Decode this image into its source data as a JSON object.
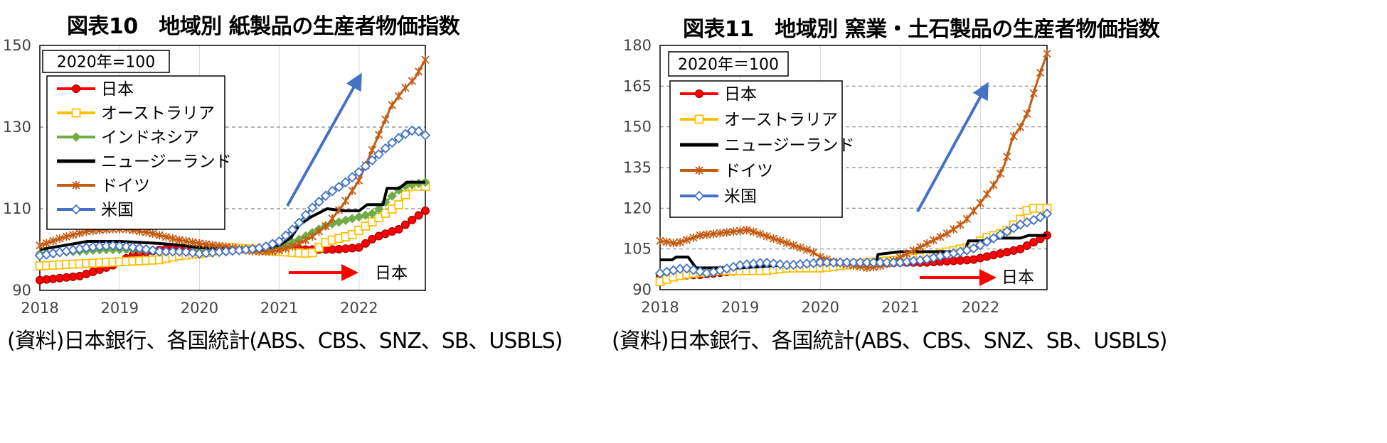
{
  "panels": [
    {
      "title": "図表10　地域別 紙製品の生産者物価指数",
      "source": "(資料)日本銀行、各国統計(ABS、CBS、SNZ、SB、USBLS)",
      "note": "2020年=100",
      "annotation": "日本"
    },
    {
      "title": "図表11　地域別 窯業・土石製品の生産者物価指数",
      "source": "(資料)日本銀行、各国統計(ABS、CBS、SNZ、SB、USBLS)",
      "note": "2020年＝100",
      "annotation": "日本"
    }
  ],
  "colors": {
    "japan": "#ff0000",
    "australia": "#ffc000",
    "indonesia": "#70ad47",
    "nz": "#000000",
    "germany": "#c55a11",
    "usa": "#4472c4",
    "arrow_blue": "#4472c4",
    "arrow_red": "#ff0000"
  },
  "chart_data": [
    {
      "type": "line",
      "ylim": [
        90,
        150
      ],
      "yticks": [
        90,
        110,
        130,
        150
      ],
      "xlim": [
        2018,
        2022.83
      ],
      "xticks": [
        "2018",
        "2019",
        "2020",
        "2021",
        "2022"
      ],
      "grid": "horizontal dashed",
      "legend": "top-left",
      "series": [
        {
          "name": "日本",
          "key": "japan",
          "marker": "circle",
          "points": [
            [
              2018,
              92.5
            ],
            [
              2018.5,
              93.5
            ],
            [
              2018.9,
              96
            ],
            [
              2019.2,
              99
            ],
            [
              2019.6,
              100.2
            ],
            [
              2020,
              100
            ],
            [
              2020.5,
              100
            ],
            [
              2021,
              100
            ],
            [
              2021.4,
              100
            ],
            [
              2021.7,
              100
            ],
            [
              2022,
              100.5
            ],
            [
              2022.2,
              103
            ],
            [
              2022.5,
              105
            ],
            [
              2022.83,
              109.5
            ]
          ]
        },
        {
          "name": "オーストラリア",
          "key": "australia",
          "marker": "square",
          "points": [
            [
              2018,
              96
            ],
            [
              2018.5,
              96.5
            ],
            [
              2019,
              97
            ],
            [
              2019.5,
              97.5
            ],
            [
              2019.75,
              98.5
            ],
            [
              2020,
              99
            ],
            [
              2020.4,
              100.5
            ],
            [
              2020.7,
              100
            ],
            [
              2021,
              99.5
            ],
            [
              2021.4,
              99
            ],
            [
              2021.6,
              102
            ],
            [
              2021.9,
              103.5
            ],
            [
              2022.1,
              106
            ],
            [
              2022.3,
              108.5
            ],
            [
              2022.5,
              111
            ],
            [
              2022.65,
              115.5
            ],
            [
              2022.83,
              115.5
            ]
          ]
        },
        {
          "name": "インドネシア",
          "key": "indonesia",
          "marker": "diamond",
          "points": [
            [
              2018,
              99
            ],
            [
              2018.4,
              99.5
            ],
            [
              2018.8,
              100
            ],
            [
              2019.2,
              100
            ],
            [
              2019.6,
              99.5
            ],
            [
              2020,
              99.5
            ],
            [
              2020.4,
              100
            ],
            [
              2020.8,
              100
            ],
            [
              2021,
              100.5
            ],
            [
              2021.2,
              102
            ],
            [
              2021.4,
              104
            ],
            [
              2021.6,
              106
            ],
            [
              2021.8,
              107
            ],
            [
              2022,
              108
            ],
            [
              2022.2,
              109
            ],
            [
              2022.35,
              112
            ],
            [
              2022.55,
              115.5
            ],
            [
              2022.83,
              116.5
            ]
          ]
        },
        {
          "name": "ニュージーランド",
          "key": "nz",
          "marker": "none",
          "points": [
            [
              2018,
              100
            ],
            [
              2018.3,
              101
            ],
            [
              2018.6,
              102
            ],
            [
              2019,
              102
            ],
            [
              2019.5,
              101.5
            ],
            [
              2019.8,
              101
            ],
            [
              2020,
              100.5
            ],
            [
              2020.5,
              100
            ],
            [
              2020.8,
              100
            ],
            [
              2021,
              101
            ],
            [
              2021.15,
              103
            ],
            [
              2021.25,
              106
            ],
            [
              2021.4,
              108
            ],
            [
              2021.6,
              110
            ],
            [
              2021.8,
              109.5
            ],
            [
              2022,
              109.5
            ],
            [
              2022.1,
              111
            ],
            [
              2022.3,
              111
            ],
            [
              2022.35,
              115
            ],
            [
              2022.5,
              115
            ],
            [
              2022.6,
              116.5
            ],
            [
              2022.83,
              116.5
            ]
          ]
        },
        {
          "name": "ドイツ",
          "key": "germany",
          "marker": "star",
          "points": [
            [
              2018,
              101
            ],
            [
              2018.3,
              103
            ],
            [
              2018.6,
              104.5
            ],
            [
              2018.9,
              105
            ],
            [
              2019.1,
              105
            ],
            [
              2019.4,
              104
            ],
            [
              2019.7,
              102.5
            ],
            [
              2020,
              101.5
            ],
            [
              2020.4,
              100.5
            ],
            [
              2020.7,
              99.5
            ],
            [
              2020.9,
              99.5
            ],
            [
              2021,
              99.8
            ],
            [
              2021.2,
              101
            ],
            [
              2021.4,
              103
            ],
            [
              2021.6,
              106
            ],
            [
              2021.8,
              111
            ],
            [
              2022,
              117
            ],
            [
              2022.2,
              126
            ],
            [
              2022.4,
              135
            ],
            [
              2022.55,
              139
            ],
            [
              2022.7,
              142
            ],
            [
              2022.83,
              146.5
            ]
          ]
        },
        {
          "name": "米国",
          "key": "usa",
          "marker": "diamondhollow",
          "points": [
            [
              2018,
              98.5
            ],
            [
              2018.3,
              99.5
            ],
            [
              2018.6,
              100.5
            ],
            [
              2018.9,
              101
            ],
            [
              2019.2,
              100.5
            ],
            [
              2019.5,
              99.5
            ],
            [
              2019.8,
              99.5
            ],
            [
              2020,
              99
            ],
            [
              2020.3,
              99.5
            ],
            [
              2020.6,
              100
            ],
            [
              2020.8,
              100.5
            ],
            [
              2021,
              102
            ],
            [
              2021.2,
              105.5
            ],
            [
              2021.4,
              110
            ],
            [
              2021.6,
              113.5
            ],
            [
              2021.8,
              116
            ],
            [
              2022,
              119
            ],
            [
              2022.2,
              122.5
            ],
            [
              2022.4,
              126
            ],
            [
              2022.55,
              128
            ],
            [
              2022.7,
              129.5
            ],
            [
              2022.83,
              128
            ]
          ]
        }
      ]
    },
    {
      "type": "line",
      "ylim": [
        90,
        180
      ],
      "yticks": [
        90,
        105,
        120,
        135,
        150,
        165,
        180
      ],
      "xlim": [
        2018,
        2022.83
      ],
      "xticks": [
        "2018",
        "2019",
        "2020",
        "2021",
        "2022"
      ],
      "grid": "horizontal dashed",
      "legend": "top-left",
      "series": [
        {
          "name": "日本",
          "key": "japan",
          "marker": "circle",
          "points": [
            [
              2018,
              95
            ],
            [
              2018.5,
              95.5
            ],
            [
              2019,
              97
            ],
            [
              2019.5,
              98
            ],
            [
              2020,
              99
            ],
            [
              2020.5,
              99.5
            ],
            [
              2021,
              100
            ],
            [
              2021.3,
              100
            ],
            [
              2021.6,
              100.5
            ],
            [
              2021.9,
              101
            ],
            [
              2022.2,
              103
            ],
            [
              2022.5,
              105
            ],
            [
              2022.83,
              110
            ]
          ]
        },
        {
          "name": "オーストラリア",
          "key": "australia",
          "marker": "square",
          "points": [
            [
              2018,
              93
            ],
            [
              2018.2,
              95
            ],
            [
              2018.4,
              96
            ],
            [
              2018.7,
              97
            ],
            [
              2019,
              97
            ],
            [
              2019.3,
              97
            ],
            [
              2019.6,
              98
            ],
            [
              2020,
              98
            ],
            [
              2020.3,
              99
            ],
            [
              2020.6,
              100
            ],
            [
              2021,
              101
            ],
            [
              2021.3,
              102
            ],
            [
              2021.6,
              104
            ],
            [
              2021.9,
              106
            ],
            [
              2022.05,
              109
            ],
            [
              2022.3,
              111
            ],
            [
              2022.5,
              116
            ],
            [
              2022.6,
              120
            ],
            [
              2022.83,
              120
            ]
          ]
        },
        {
          "name": "ニュージーランド",
          "key": "nz",
          "marker": "none",
          "points": [
            [
              2018,
              101
            ],
            [
              2018.15,
              101
            ],
            [
              2018.2,
              102
            ],
            [
              2018.35,
              102
            ],
            [
              2018.45,
              98
            ],
            [
              2018.6,
              98
            ],
            [
              2019,
              98
            ],
            [
              2019.5,
              99
            ],
            [
              2020,
              99.5
            ],
            [
              2020.5,
              100
            ],
            [
              2020.7,
              100
            ],
            [
              2020.72,
              103
            ],
            [
              2021,
              104
            ],
            [
              2021.3,
              104
            ],
            [
              2021.6,
              104
            ],
            [
              2021.8,
              104
            ],
            [
              2021.85,
              108
            ],
            [
              2022.1,
              108
            ],
            [
              2022.15,
              109
            ],
            [
              2022.5,
              109
            ],
            [
              2022.6,
              110
            ],
            [
              2022.83,
              110
            ]
          ]
        },
        {
          "name": "ドイツ",
          "key": "germany",
          "marker": "star",
          "points": [
            [
              2018,
              108
            ],
            [
              2018.2,
              107
            ],
            [
              2018.5,
              110
            ],
            [
              2018.8,
              111
            ],
            [
              2019.1,
              112
            ],
            [
              2019.3,
              110
            ],
            [
              2019.6,
              107
            ],
            [
              2019.9,
              104
            ],
            [
              2020,
              102
            ],
            [
              2020.2,
              100
            ],
            [
              2020.4,
              99
            ],
            [
              2020.6,
              98
            ],
            [
              2020.8,
              99
            ],
            [
              2021,
              102
            ],
            [
              2021.2,
              105
            ],
            [
              2021.4,
              108
            ],
            [
              2021.6,
              111
            ],
            [
              2021.8,
              115
            ],
            [
              2022,
              122
            ],
            [
              2022.2,
              130
            ],
            [
              2022.3,
              136
            ],
            [
              2022.4,
              146
            ],
            [
              2022.5,
              150
            ],
            [
              2022.6,
              156
            ],
            [
              2022.7,
              166
            ],
            [
              2022.83,
              177
            ]
          ]
        },
        {
          "name": "米国",
          "key": "usa",
          "marker": "diamondhollow",
          "points": [
            [
              2018,
              96
            ],
            [
              2018.3,
              98
            ],
            [
              2018.6,
              96
            ],
            [
              2019,
              99
            ],
            [
              2019.3,
              100
            ],
            [
              2019.6,
              99
            ],
            [
              2020,
              100
            ],
            [
              2020.3,
              100
            ],
            [
              2020.6,
              100
            ],
            [
              2020.9,
              100
            ],
            [
              2021,
              100
            ],
            [
              2021.3,
              101
            ],
            [
              2021.6,
              103
            ],
            [
              2021.9,
              105
            ],
            [
              2022.1,
              108
            ],
            [
              2022.3,
              111
            ],
            [
              2022.5,
              114
            ],
            [
              2022.7,
              116
            ],
            [
              2022.83,
              118
            ]
          ]
        }
      ]
    }
  ]
}
